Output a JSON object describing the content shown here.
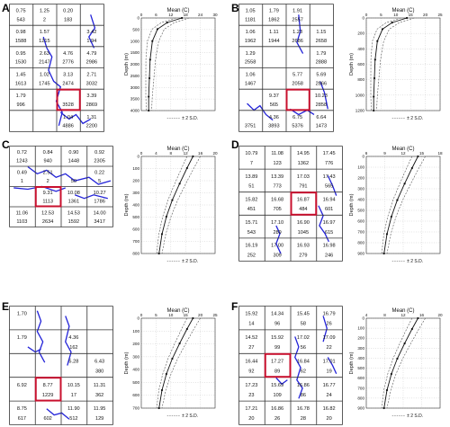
{
  "panels": [
    {
      "letter": "A",
      "grid": [
        [
          "0.75",
          "1.25",
          "0.20",
          ""
        ],
        [
          "543",
          "2",
          "183",
          ""
        ],
        [
          "0.98",
          "1.57",
          "",
          "3.42"
        ],
        [
          "1588",
          "1215",
          "",
          "1.94"
        ],
        [
          "0.95",
          "2.63",
          "4.76",
          "4.79"
        ],
        [
          "1530",
          "2147",
          "2776",
          "2986"
        ],
        [
          "1.45",
          "1.02",
          "3.13",
          "2.71"
        ],
        [
          "1613",
          "1745",
          "2474",
          "3032"
        ],
        [
          "1.79",
          "",
          "",
          "3.39"
        ],
        [
          "996",
          "",
          "3528",
          "2869"
        ],
        [
          "",
          "",
          "1.04",
          "1.31"
        ],
        [
          "",
          "",
          "4886",
          "2200"
        ]
      ],
      "cols": 4,
      "rows": 6,
      "highlight": [
        4,
        2
      ],
      "xTitle": "Mean (C)",
      "xTicks": [
        "0",
        "6",
        "12",
        "18",
        "24",
        "30"
      ],
      "yTitle": "Depth (m)",
      "yTicks": [
        "0",
        "500",
        "1000",
        "1500",
        "2000",
        "2500",
        "3000",
        "3500",
        "4000"
      ],
      "legend": "± 2 S.D."
    },
    {
      "letter": "B",
      "grid": [
        [
          "1.05",
          "1.79",
          "1.91",
          ""
        ],
        [
          "1181",
          "1862",
          "2557",
          ""
        ],
        [
          "1.06",
          "1.11",
          "1.23",
          "1.15"
        ],
        [
          "1962",
          "1944",
          "2686",
          "2658"
        ],
        [
          "1.29",
          "",
          "",
          "1.79"
        ],
        [
          "2558",
          "",
          "",
          "2888"
        ],
        [
          "1.06",
          "",
          "5.77",
          "5.69"
        ],
        [
          "1467",
          "",
          "2058",
          "2866"
        ],
        [
          "",
          "9.37",
          "",
          "10.23"
        ],
        [
          "",
          "565",
          "",
          "2858"
        ],
        [
          "",
          "4.36",
          "6.75",
          "6.64"
        ],
        [
          "3751",
          "3893",
          "5376",
          "1473"
        ]
      ],
      "cols": 4,
      "rows": 6,
      "highlight": [
        4,
        2
      ],
      "xTitle": "Mean (C)",
      "xTicks": [
        "0",
        "5",
        "10",
        "15",
        "20",
        "25"
      ],
      "yTitle": "Depth (m)",
      "yTicks": [
        "0",
        "200",
        "400",
        "600",
        "800",
        "1000",
        "1200"
      ],
      "legend": "± 2 S.D."
    },
    {
      "letter": "C",
      "grid": [
        [
          "0.72",
          "0.84",
          "0.90",
          "0.92"
        ],
        [
          "1243",
          "940",
          "1448",
          "2305"
        ],
        [
          "0.49",
          "2.51",
          "",
          "0.22"
        ],
        [
          "1",
          "2",
          "50",
          "5"
        ],
        [
          "",
          "9.31",
          "10.08",
          "10.27"
        ],
        [
          "",
          "1113",
          "1361",
          "1786"
        ],
        [
          "11.06",
          "12.53",
          "14.53",
          "14.00"
        ],
        [
          "1103",
          "2634",
          "1592",
          "3417"
        ]
      ],
      "cols": 4,
      "rows": 4,
      "highlight": [
        2,
        1
      ],
      "xTitle": "Mean (C)",
      "xTicks": [
        "0",
        "4",
        "8",
        "12",
        "16",
        "20"
      ],
      "yTitle": "Depth (m)",
      "yTicks": [
        "0",
        "100",
        "200",
        "300",
        "400",
        "500",
        "600",
        "700",
        "800"
      ],
      "legend": "± 2 S.D."
    },
    {
      "letter": "D",
      "grid": [
        [
          "10.79",
          "11.08",
          "14.95",
          "17.45"
        ],
        [
          "7",
          "123",
          "1362",
          "776"
        ],
        [
          "13.89",
          "13.39",
          "17.03",
          "17.43"
        ],
        [
          "51",
          "773",
          "791",
          "565"
        ],
        [
          "15.82",
          "16.68",
          "16.87",
          "16.94"
        ],
        [
          "451",
          "705",
          "484",
          "601"
        ],
        [
          "15.71",
          "17.10",
          "16.90",
          "16.97"
        ],
        [
          "543",
          "289",
          "1045",
          "615"
        ],
        [
          "16.19",
          "17.00",
          "16.93",
          "16.98"
        ],
        [
          "252",
          "309",
          "279",
          "246"
        ]
      ],
      "cols": 4,
      "rows": 5,
      "highlight": [
        2,
        2
      ],
      "xTitle": "Mean (C)",
      "xTicks": [
        "6",
        "9",
        "12",
        "15",
        "18"
      ],
      "yTitle": "Depth (m)",
      "yTicks": [
        "0",
        "100",
        "200",
        "300",
        "400",
        "500",
        "600",
        "700",
        "800",
        "900"
      ],
      "legend": "± 2 S.D."
    },
    {
      "letter": "E",
      "grid": [
        [
          "1.70",
          "",
          "",
          ""
        ],
        [
          "",
          "",
          "",
          ""
        ],
        [
          "1.79",
          "",
          "4.36",
          ""
        ],
        [
          "",
          "",
          "162",
          ""
        ],
        [
          "",
          "",
          "5.28",
          "6.43"
        ],
        [
          "",
          "",
          "",
          "380"
        ],
        [
          "6.92",
          "8.77",
          "10.15",
          "11.31"
        ],
        [
          "",
          "1229",
          "17",
          "362"
        ],
        [
          "8.75",
          "",
          "11.90",
          "11.95"
        ],
        [
          "617",
          "602",
          "512",
          "129"
        ]
      ],
      "cols": 4,
      "rows": 5,
      "highlight": [
        3,
        1
      ],
      "xTitle": "Mean (C)",
      "xTicks": [
        "0",
        "5",
        "10",
        "15",
        "20",
        "25"
      ],
      "yTitle": "Depth (m)",
      "yTicks": [
        "0",
        "100",
        "200",
        "300",
        "400",
        "500",
        "600",
        "700"
      ],
      "legend": "± 2 S.D."
    },
    {
      "letter": "F",
      "grid": [
        [
          "15.92",
          "14.34",
          "15.45",
          "16.79"
        ],
        [
          "14",
          "96",
          "58",
          "26"
        ],
        [
          "14.52",
          "15.92",
          "17.02",
          "17.09"
        ],
        [
          "27",
          "99",
          "56",
          "22"
        ],
        [
          "16.44",
          "17.27",
          "16.84",
          "17.01"
        ],
        [
          "92",
          "89",
          "62",
          "19"
        ],
        [
          "17.23",
          "15.69",
          "16.86",
          "16.77"
        ],
        [
          "23",
          "109",
          "86",
          "24"
        ],
        [
          "17.21",
          "16.86",
          "16.78",
          "16.82"
        ],
        [
          "20",
          "26",
          "28",
          "20"
        ]
      ],
      "cols": 4,
      "rows": 5,
      "highlight": [
        2,
        1
      ],
      "xTitle": "Mean (C)",
      "xTicks": [
        "4",
        "8",
        "12",
        "16",
        "20"
      ],
      "yTitle": "Depth (m)",
      "yTicks": [
        "0",
        "100",
        "200",
        "300",
        "400",
        "500",
        "600",
        "700",
        "800",
        "900"
      ],
      "legend": "± 2 S.D."
    }
  ]
}
